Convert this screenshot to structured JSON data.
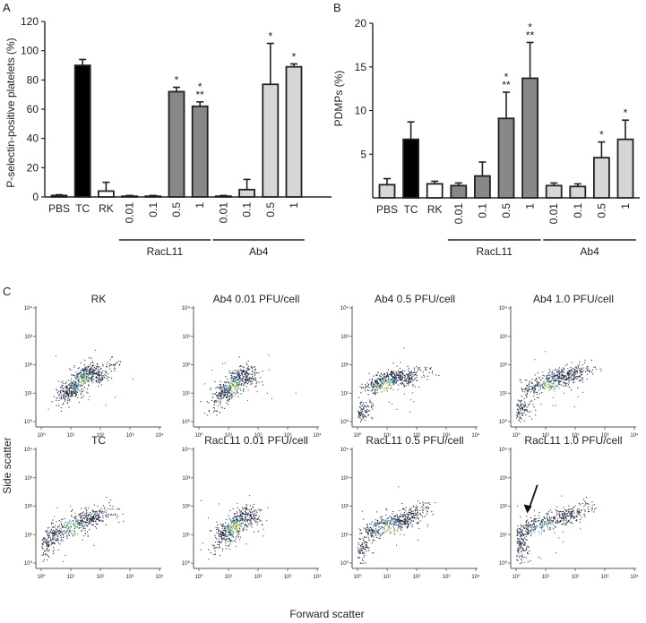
{
  "panels": {
    "a": "A",
    "b": "B",
    "c": "C"
  },
  "chart_data": [
    {
      "type": "bar",
      "panel": "A",
      "ylabel": "P-selectin-positive platelets (%)",
      "ylim": [
        0,
        120
      ],
      "yticks": [
        0,
        20,
        40,
        60,
        80,
        100,
        120
      ],
      "ytick_labels": [
        "0",
        "20",
        "40",
        "60",
        "80",
        "100",
        "120"
      ],
      "categories": [
        "PBS",
        "TC",
        "RK",
        "0.01",
        "0.1",
        "0.5",
        "1",
        "0.01",
        "0.1",
        "0.5",
        "1"
      ],
      "values": [
        1,
        90,
        4,
        0.5,
        0.5,
        72,
        62,
        0.5,
        5,
        77,
        89
      ],
      "errors": [
        0.5,
        4,
        6,
        0.5,
        0.5,
        3,
        3,
        0.5,
        7,
        28,
        2
      ],
      "fills": [
        "#ffffff",
        "#000000",
        "#ffffff",
        "#888888",
        "#888888",
        "#888888",
        "#888888",
        "#d6d6d6",
        "#d6d6d6",
        "#d6d6d6",
        "#d6d6d6"
      ],
      "annotations": [
        "",
        "",
        "",
        "",
        "",
        "*",
        "*\n**",
        "",
        "",
        "*",
        "*"
      ],
      "groups": [
        {
          "label": "RacL11",
          "from": 3,
          "to": 6
        },
        {
          "label": "Ab4",
          "from": 7,
          "to": 10
        }
      ]
    },
    {
      "type": "bar",
      "panel": "B",
      "ylabel": "PDMPs (%)",
      "ylim": [
        0,
        20
      ],
      "yticks": [
        5,
        10,
        15,
        20
      ],
      "ytick_labels": [
        "5",
        "10",
        "15",
        "20"
      ],
      "categories": [
        "PBS",
        "TC",
        "RK",
        "0.01",
        "0.1",
        "0.5",
        "1",
        "0.01",
        "0.1",
        "0.5",
        "1"
      ],
      "values": [
        1.5,
        6.7,
        1.6,
        1.4,
        2.5,
        9.1,
        13.7,
        1.4,
        1.3,
        4.6,
        6.7
      ],
      "errors": [
        0.7,
        2.0,
        0.3,
        0.3,
        1.6,
        3.0,
        4.1,
        0.3,
        0.3,
        1.8,
        2.2
      ],
      "fills": [
        "#d6d6d6",
        "#000000",
        "#ffffff",
        "#888888",
        "#888888",
        "#888888",
        "#888888",
        "#d6d6d6",
        "#d6d6d6",
        "#d6d6d6",
        "#d6d6d6"
      ],
      "annotations": [
        "",
        "",
        "",
        "",
        "",
        "*\n**",
        "*\n**",
        "",
        "",
        "*",
        "*"
      ],
      "groups": [
        {
          "label": "RacL11",
          "from": 3,
          "to": 6
        },
        {
          "label": "Ab4",
          "from": 7,
          "to": 10
        }
      ]
    },
    {
      "type": "scatter",
      "panel": "C",
      "xlabel": "Forward scatter",
      "ylabel": "Side scatter",
      "xticks": [
        "10⁰",
        "10¹",
        "10²",
        "10³",
        "10⁴"
      ],
      "yticks": [
        "10⁰",
        "10¹",
        "10²",
        "10³",
        "10⁴"
      ],
      "plots": [
        {
          "title": "RK",
          "x": [
            0.72,
            0.9,
            1.02,
            1.28,
            1.48,
            1.62,
            1.9,
            2.4
          ],
          "y": [
            0.8,
            1.05,
            1.22,
            1.45,
            1.65,
            1.82,
            1.6,
            2.0
          ]
        },
        {
          "title": "Ab4 0.01 PFU/cell",
          "x": [
            0.52,
            0.78,
            1.0,
            1.2,
            1.38,
            1.58,
            1.85
          ],
          "y": [
            0.55,
            0.95,
            1.15,
            1.35,
            1.55,
            1.75,
            1.5
          ]
        },
        {
          "title": "Ab4 0.5 PFU/cell",
          "x": [
            0.08,
            0.12,
            0.5,
            0.85,
            1.12,
            1.4,
            1.72,
            2.2
          ],
          "y": [
            0.15,
            0.45,
            1.25,
            1.45,
            1.58,
            1.62,
            1.55,
            1.75
          ]
        },
        {
          "title": "Ab4 1.0 PFU/cell",
          "x": [
            0.08,
            0.12,
            0.5,
            1.0,
            1.35,
            1.65,
            1.95,
            2.4
          ],
          "y": [
            0.18,
            0.45,
            1.2,
            1.35,
            1.5,
            1.62,
            1.7,
            1.9
          ]
        },
        {
          "title": "TC",
          "x": [
            0.08,
            0.15,
            0.45,
            0.9,
            1.3,
            1.55,
            1.85,
            2.35
          ],
          "y": [
            0.35,
            0.7,
            1.0,
            1.22,
            1.4,
            1.55,
            1.65,
            1.85
          ]
        },
        {
          "title": "RacL11 0.01 PFU/cell",
          "x": [
            0.55,
            0.8,
            1.0,
            1.2,
            1.4,
            1.62,
            1.9
          ],
          "y": [
            0.55,
            0.95,
            1.15,
            1.35,
            1.55,
            1.75,
            1.5
          ]
        },
        {
          "title": "RacL11 0.5 PFU/cell",
          "x": [
            0.05,
            0.1,
            0.45,
            0.9,
            1.25,
            1.55,
            1.85,
            2.35
          ],
          "y": [
            0.2,
            0.55,
            1.1,
            1.35,
            1.48,
            1.55,
            1.72,
            1.95
          ]
        },
        {
          "title": "RacL11 1.0 PFU/cell",
          "x": [
            0.05,
            0.08,
            0.12,
            0.5,
            1.0,
            1.45,
            1.85,
            2.4
          ],
          "y": [
            0.1,
            0.55,
            1.0,
            1.3,
            1.45,
            1.6,
            1.75,
            2.0
          ]
        }
      ],
      "arrow_plot": "RacL11 1.0 PFU/cell"
    }
  ]
}
